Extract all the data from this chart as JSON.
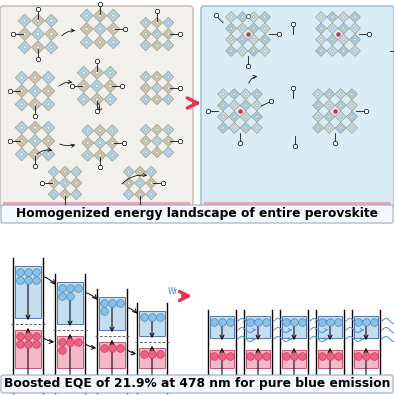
{
  "fig_width": 3.94,
  "fig_height": 3.96,
  "bg_color": "#ffffff",
  "blue_diamond": "#b8d8ec",
  "gray_diamond": "#c8c4b8",
  "light_blue_bg_right": "#deeef8",
  "light_gray_bg_left": "#f0eeeb",
  "pink_bar": "#e8b0c0",
  "arrow_pink": "#e8305a",
  "text_box_bg": "#f5f8ff",
  "text_box_border": "#9aabcc",
  "label1": "Homogenized energy landscape of entire perovskite",
  "label2": "Boosted EQE of 21.9% at 478 nm for pure blue emission",
  "label1_fontsize": 8.8,
  "label2_fontsize": 8.8
}
